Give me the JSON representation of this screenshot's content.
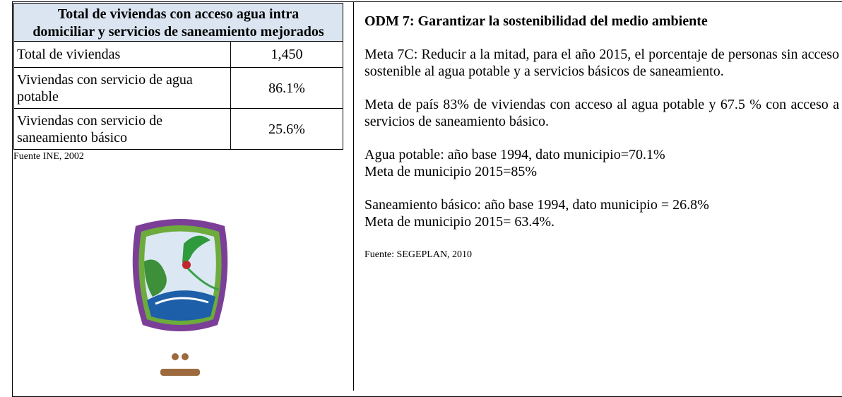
{
  "left": {
    "table": {
      "header": "Total de viviendas con acceso agua intra domiciliar y servicios de saneamiento mejorados",
      "rows": [
        [
          "Total de viviendas",
          "1,450"
        ],
        [
          "Viviendas con servicio de agua potable",
          "86.1%"
        ],
        [
          "Viviendas con servicio de saneamiento básico",
          "25.6%"
        ]
      ]
    },
    "source": "Fuente INE, 2002"
  },
  "right": {
    "title": "ODM 7: Garantizar la sostenibilidad del medio ambiente",
    "paragraphs": [
      [
        "Meta 7C: Reducir a la mitad, para el año 2015, el porcentaje de personas sin acceso sostenible al agua potable y a servicios básicos de saneamiento."
      ],
      [
        "Meta de país 83% de viviendas con acceso al agua potable y 67.5 % con acceso a servicios de saneamiento básico."
      ],
      [
        "Agua potable: año base 1994, dato municipio=70.1%",
        "Meta de municipio 2015=85%"
      ],
      [
        "Saneamiento básico: año base 1994, dato municipio = 26.8%",
        "Meta de municipio 2015= 63.4%."
      ]
    ],
    "source": "Fuente: SEGEPLAN, 2010"
  }
}
